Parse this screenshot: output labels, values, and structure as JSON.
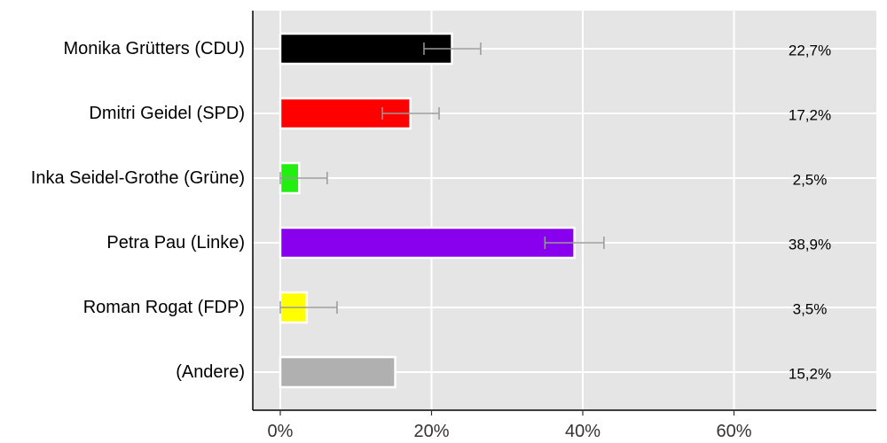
{
  "chart_data": {
    "type": "bar",
    "orientation": "horizontal",
    "title": "",
    "xlabel": "",
    "ylabel": "",
    "xlim": [
      -4.5,
      78
    ],
    "x_ticks": [
      0,
      20,
      40,
      60
    ],
    "x_tick_labels": [
      "0%",
      "20%",
      "40%",
      "60%"
    ],
    "grid": true,
    "background": "#e5e5e5",
    "categories": [
      "Monika Grütters (CDU)",
      "Dmitri Geidel (SPD)",
      "Inka Seidel-Grothe (Grüne)",
      "Petra Pau (Linke)",
      "Roman Rogat (FDP)",
      "(Andere)"
    ],
    "values": [
      22.7,
      17.2,
      2.5,
      38.9,
      3.5,
      15.2
    ],
    "value_labels": [
      "22,7%",
      "17,2%",
      "2,5%",
      "38,9%",
      "3,5%",
      "15,2%"
    ],
    "colors": [
      "#000000",
      "#ff0000",
      "#22ee11",
      "#8800ee",
      "#ffff00",
      "#b0b0b0"
    ],
    "error_bars": [
      [
        19.0,
        26.5
      ],
      [
        13.5,
        21.0
      ],
      [
        0.0,
        6.2
      ],
      [
        35.0,
        42.8
      ],
      [
        0.0,
        7.5
      ],
      null
    ]
  }
}
